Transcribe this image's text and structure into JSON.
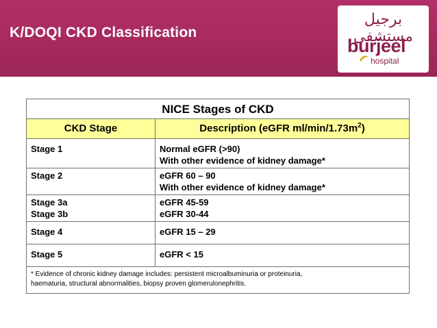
{
  "slide": {
    "title": "K/DOQI CKD Classification"
  },
  "logo": {
    "arabic": "برجيل مستشفى",
    "name": "burjeel",
    "subtitle": "hospital"
  },
  "table": {
    "caption": "NICE Stages of CKD",
    "headers": {
      "stage": "CKD Stage",
      "description_main": "Description (eGFR ml/min/1.73m",
      "description_sup": "2",
      "description_end": ")"
    },
    "rows": [
      {
        "stage": [
          "Stage 1"
        ],
        "description": [
          "Normal eGFR (>90)",
          "With other evidence of kidney damage*"
        ]
      },
      {
        "stage": [
          "Stage 2"
        ],
        "description": [
          "eGFR 60 – 90",
          "With other evidence of kidney damage*"
        ]
      },
      {
        "stage": [
          "Stage 3a",
          "Stage 3b"
        ],
        "description": [
          "eGFR 45-59",
          "eGFR 30-44"
        ]
      },
      {
        "stage": [
          "Stage 4"
        ],
        "description": [
          "eGFR 15 – 29"
        ]
      },
      {
        "stage": [
          "Stage 5"
        ],
        "description": [
          "eGFR < 15"
        ]
      }
    ],
    "footnote": [
      "* Evidence of chronic kidney damage includes: persistent microalbuminuria or proteinuria,",
      "haematuria, structural abnormalities, biopsy proven glomerulonephritis."
    ]
  },
  "colors": {
    "banner": "#a72a5e",
    "header_fill": "#ffff99",
    "logo_text": "#8c1f4d"
  }
}
